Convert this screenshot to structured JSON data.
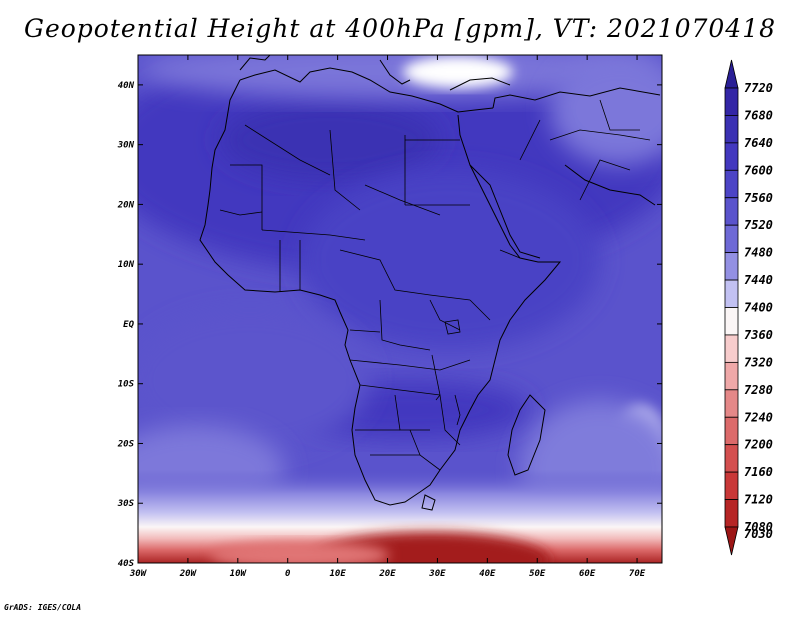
{
  "title": "Geopotential Height at 400hPa [gpm], VT: 2021070418",
  "credit": "GrADS: IGES/COLA",
  "map": {
    "projection": "lat-lon",
    "lon_range": [
      -30,
      75
    ],
    "lat_range": [
      -40,
      45
    ],
    "lat_ticks": [
      {
        "value": 40,
        "label": "40N"
      },
      {
        "value": 30,
        "label": "30N"
      },
      {
        "value": 20,
        "label": "20N"
      },
      {
        "value": 10,
        "label": "10N"
      },
      {
        "value": 0,
        "label": "EQ"
      },
      {
        "value": -10,
        "label": "10S"
      },
      {
        "value": -20,
        "label": "20S"
      },
      {
        "value": -30,
        "label": "30S"
      },
      {
        "value": -40,
        "label": "40S"
      }
    ],
    "lon_ticks": [
      {
        "value": -30,
        "label": "30W"
      },
      {
        "value": -20,
        "label": "20W"
      },
      {
        "value": -10,
        "label": "10W"
      },
      {
        "value": 0,
        "label": "0"
      },
      {
        "value": 10,
        "label": "10E"
      },
      {
        "value": 20,
        "label": "20E"
      },
      {
        "value": 30,
        "label": "30E"
      },
      {
        "value": 40,
        "label": "40E"
      },
      {
        "value": 50,
        "label": "50E"
      },
      {
        "value": 60,
        "label": "60E"
      },
      {
        "value": 70,
        "label": "70E"
      }
    ]
  },
  "colorbar": {
    "levels": [
      {
        "label": "7720",
        "color": "#2a1f96"
      },
      {
        "label": "7680",
        "color": "#3326a6"
      },
      {
        "label": "7640",
        "color": "#3b31b3"
      },
      {
        "label": "7600",
        "color": "#4338bf"
      },
      {
        "label": "7560",
        "color": "#4c44c6"
      },
      {
        "label": "7520",
        "color": "#5a53cc"
      },
      {
        "label": "7480",
        "color": "#6e69d6"
      },
      {
        "label": "7440",
        "color": "#9390e3"
      },
      {
        "label": "7400",
        "color": "#c2c1f2"
      },
      {
        "label": "7360",
        "color": "#fbf6f6"
      },
      {
        "label": "7320",
        "color": "#f7cccc"
      },
      {
        "label": "7280",
        "color": "#efa8a8"
      },
      {
        "label": "7240",
        "color": "#e58888"
      },
      {
        "label": "7200",
        "color": "#dc6a6a"
      },
      {
        "label": "7160",
        "color": "#d44f4f"
      },
      {
        "label": "7120",
        "color": "#c93838"
      },
      {
        "label": "7080",
        "color": "#b62525"
      },
      {
        "label": "7030",
        "color": "#9c1515"
      }
    ]
  }
}
